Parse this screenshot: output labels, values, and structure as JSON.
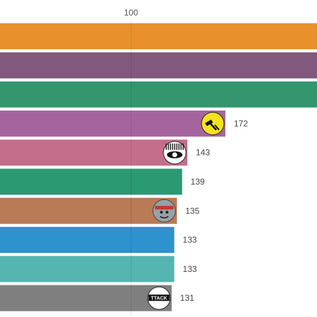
{
  "chart_data": {
    "type": "bar",
    "orientation": "horizontal",
    "x_ticks": [
      100
    ],
    "x_per_px": 0.5376,
    "grid": true,
    "bars": [
      {
        "value": 243,
        "color": "#E8912C",
        "value_label": "",
        "logo": ""
      },
      {
        "value": 243,
        "color": "#82597E",
        "value_label": "",
        "logo": ""
      },
      {
        "value": 243,
        "color": "#33966E",
        "value_label": "",
        "logo": ""
      },
      {
        "value": 172,
        "color": "#A6649E",
        "value_label": "172",
        "logo": "hammer-logo-icon"
      },
      {
        "value": 143,
        "color": "#C56E8C",
        "value_label": "143",
        "logo": "eye-logo-icon"
      },
      {
        "value": 139,
        "color": "#2A9A73",
        "value_label": "139",
        "logo": ""
      },
      {
        "value": 135,
        "color": "#B97A56",
        "value_label": "135",
        "logo": "warrior-logo-icon"
      },
      {
        "value": 133,
        "color": "#2E92CC",
        "value_label": "133",
        "logo": ""
      },
      {
        "value": 133,
        "color": "#55B5B0",
        "value_label": "133",
        "logo": ""
      },
      {
        "value": 131,
        "color": "#7F7F7F",
        "value_label": "131",
        "logo": "attack-logo-icon"
      }
    ],
    "logo_text": {
      "attack": "TTACK"
    }
  }
}
